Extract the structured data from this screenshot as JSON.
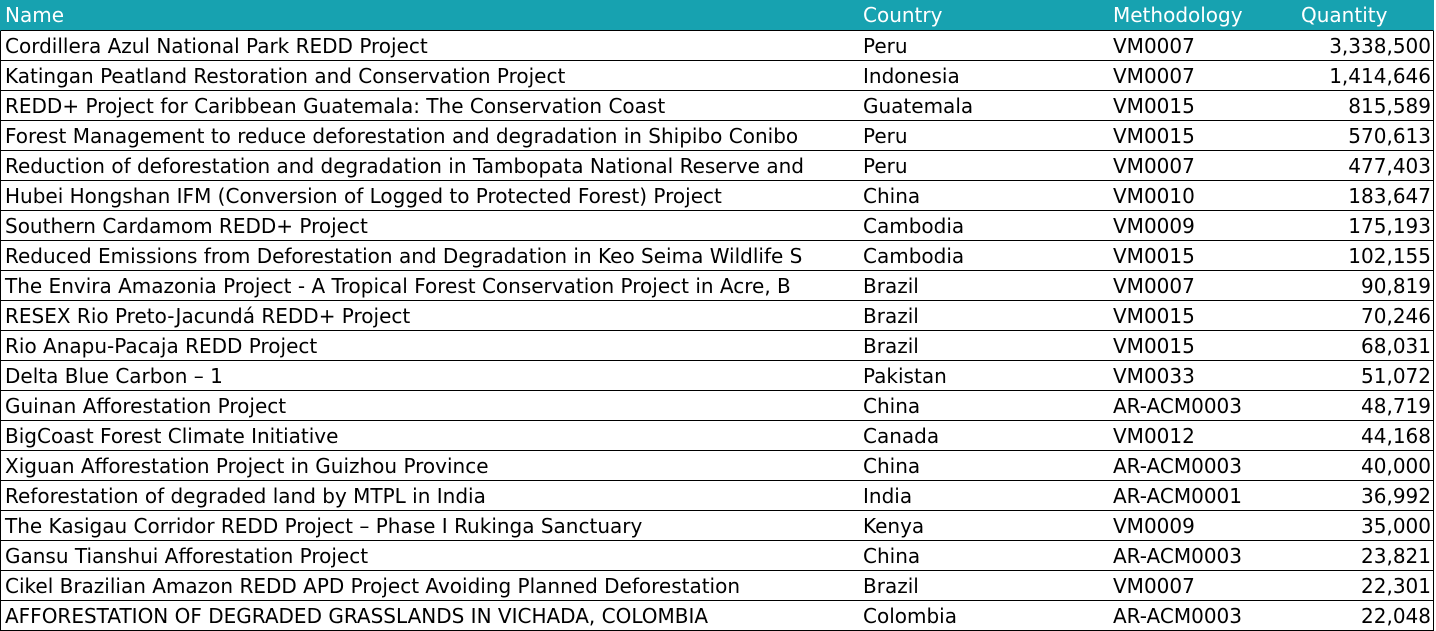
{
  "header_color": "#17A2B0",
  "table": {
    "columns": [
      "Name",
      "Country",
      "Methodology",
      "Quantity"
    ],
    "rows": [
      [
        "Cordillera Azul National Park REDD Project",
        "Peru",
        "VM0007",
        "3,338,500"
      ],
      [
        "Katingan Peatland Restoration and Conservation Project",
        "Indonesia",
        "VM0007",
        "1,414,646"
      ],
      [
        "REDD+ Project for Caribbean Guatemala: The Conservation Coast",
        "Guatemala",
        "VM0015",
        "815,589"
      ],
      [
        "Forest Management to reduce deforestation and degradation in Shipibo Conibo",
        "Peru",
        "VM0015",
        "570,613"
      ],
      [
        "Reduction of deforestation and degradation in Tambopata National Reserve and",
        "Peru",
        "VM0007",
        "477,403"
      ],
      [
        "Hubei Hongshan IFM (Conversion of Logged to Protected Forest) Project",
        "China",
        "VM0010",
        "183,647"
      ],
      [
        "Southern Cardamom REDD+ Project",
        "Cambodia",
        "VM0009",
        "175,193"
      ],
      [
        "Reduced Emissions from Deforestation and Degradation in Keo Seima Wildlife S",
        "Cambodia",
        "VM0015",
        "102,155"
      ],
      [
        "The Envira Amazonia Project - A Tropical Forest Conservation Project in Acre, B",
        "Brazil",
        "VM0007",
        "90,819"
      ],
      [
        "RESEX Rio Preto-Jacundá REDD+ Project",
        "Brazil",
        "VM0015",
        "70,246"
      ],
      [
        "Rio Anapu-Pacaja REDD Project",
        "Brazil",
        "VM0015",
        "68,031"
      ],
      [
        "Delta Blue Carbon – 1",
        "Pakistan",
        "VM0033",
        "51,072"
      ],
      [
        "Guinan Afforestation Project",
        "China",
        "AR-ACM0003",
        "48,719"
      ],
      [
        "BigCoast Forest Climate Initiative",
        "Canada",
        "VM0012",
        "44,168"
      ],
      [
        "Xiguan Afforestation Project in Guizhou Province",
        "China",
        "AR-ACM0003",
        "40,000"
      ],
      [
        "Reforestation of degraded land by MTPL in India",
        "India",
        "AR-ACM0001",
        "36,992"
      ],
      [
        "The Kasigau Corridor REDD Project – Phase I Rukinga Sanctuary",
        "Kenya",
        "VM0009",
        "35,000"
      ],
      [
        "Gansu Tianshui Afforestation Project",
        "China",
        "AR-ACM0003",
        "23,821"
      ],
      [
        "Cikel Brazilian Amazon REDD APD Project   Avoiding Planned Deforestation",
        "Brazil",
        "VM0007",
        "22,301"
      ],
      [
        "AFFORESTATION OF DEGRADED GRASSLANDS IN VICHADA, COLOMBIA",
        "Colombia",
        "AR-ACM0003",
        "22,048"
      ]
    ]
  }
}
